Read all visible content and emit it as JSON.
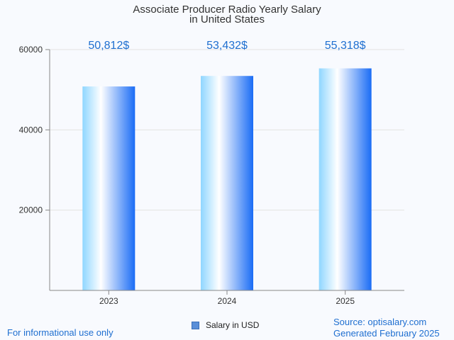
{
  "chart_data": {
    "type": "bar",
    "title": "Associate Producer Radio Yearly Salary",
    "subtitle": "in United States",
    "categories": [
      "2023",
      "2024",
      "2025"
    ],
    "series": [
      {
        "name": "Salary in USD",
        "values": [
          50812,
          53432,
          55318
        ]
      }
    ],
    "data_labels": [
      "50,812$",
      "53,432$",
      "55,318$"
    ],
    "y_ticks": [
      "20000",
      "40000",
      "60000"
    ],
    "y_tick_values": [
      20000,
      40000,
      60000
    ],
    "ylim": [
      0,
      60000
    ],
    "grid": true,
    "legend": "bottom-center"
  },
  "colors": {
    "bar_light": "#e9f8ff",
    "bar_mid": "#8fd6ff",
    "bar_dark": "#1a6cf5",
    "label": "#1f6fd0",
    "grid": "#e3e3e3",
    "axis": "#888888"
  },
  "footer": {
    "disclaimer": "For informational use only",
    "source": "Source: optisalary.com",
    "generated": "Generated February 2025"
  },
  "legend_icon": "square-swatch"
}
